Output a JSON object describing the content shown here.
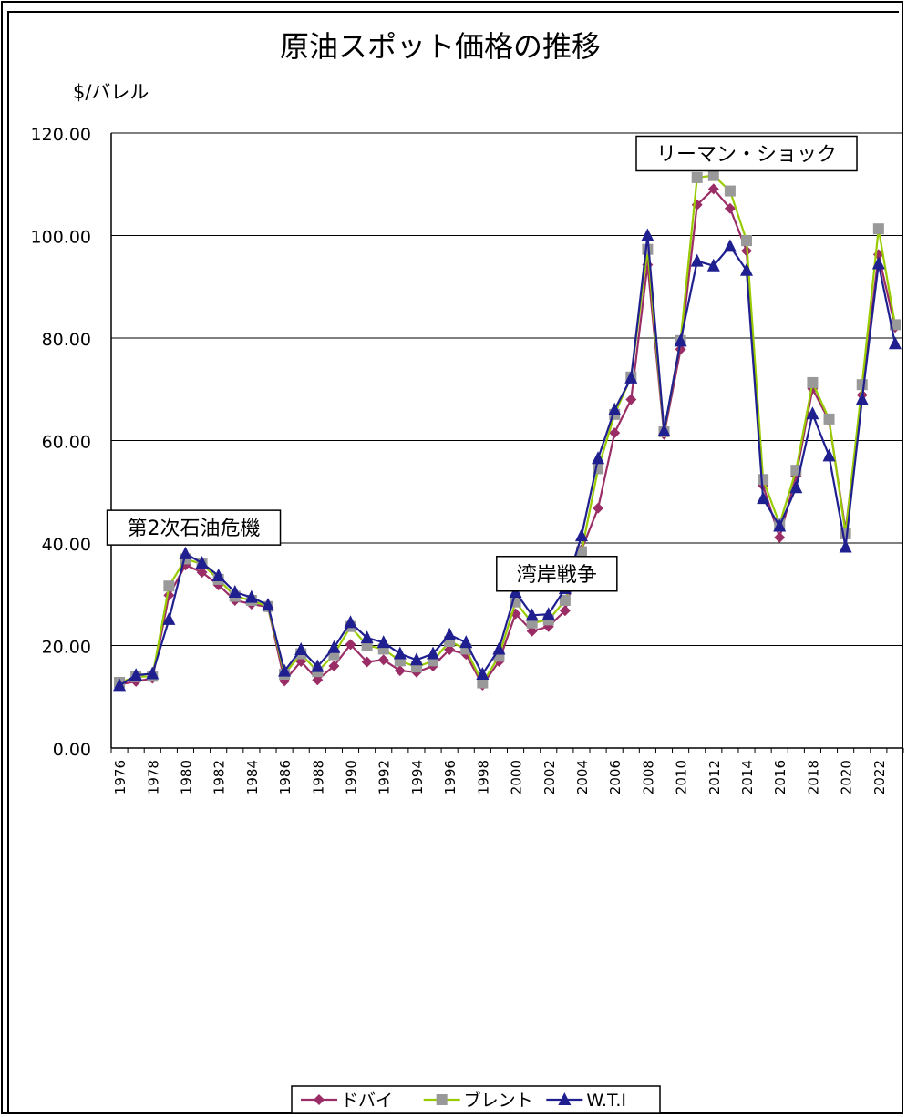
{
  "chart_data": {
    "type": "line",
    "title": "原油スポット価格の推移",
    "unit_label": "$/バレル",
    "ylim": [
      0,
      120
    ],
    "y_ticks": [
      "0.00",
      "20.00",
      "40.00",
      "60.00",
      "80.00",
      "100.00",
      "120.00"
    ],
    "grid": true,
    "x": [
      1976,
      1977,
      1978,
      1979,
      1980,
      1981,
      1982,
      1983,
      1984,
      1985,
      1986,
      1987,
      1988,
      1989,
      1990,
      1991,
      1992,
      1993,
      1994,
      1995,
      1996,
      1997,
      1998,
      1999,
      2000,
      2001,
      2002,
      2003,
      2004,
      2005,
      2006,
      2007,
      2008,
      2009,
      2010,
      2011,
      2012,
      2013,
      2014,
      2015,
      2016,
      2017,
      2018,
      2019,
      2020,
      2021,
      2022,
      2023
    ],
    "x_tick_labels": [
      "1976",
      "1978",
      "1980",
      "1982",
      "1984",
      "1986",
      "1988",
      "1990",
      "1992",
      "1994",
      "1996",
      "1998",
      "2000",
      "2002",
      "2004",
      "2006",
      "2008",
      "2010",
      "2012",
      "2014",
      "2016",
      "2018",
      "2020",
      "2022"
    ],
    "series": [
      {
        "name": "ドバイ",
        "color": "#9b2d66",
        "marker": "diamond",
        "values": [
          12.4,
          13.0,
          13.6,
          29.8,
          35.7,
          34.3,
          31.8,
          28.8,
          28.1,
          27.5,
          13.1,
          16.9,
          13.3,
          16.0,
          20.2,
          16.8,
          17.2,
          15.1,
          14.8,
          16.0,
          19.2,
          18.3,
          12.3,
          16.9,
          26.2,
          22.8,
          23.7,
          26.8,
          38.7,
          46.8,
          61.5,
          68.0,
          94.3,
          61.2,
          77.8,
          106.0,
          109.1,
          105.3,
          97.0,
          51.2,
          41.1,
          53.1,
          70.1,
          63.9,
          42.5,
          68.9,
          96.3,
          82.1
        ]
      },
      {
        "name": "ブレント",
        "color": "#99cc00",
        "marker": "square",
        "values": [
          12.8,
          13.9,
          14.0,
          31.6,
          36.9,
          35.9,
          32.9,
          29.6,
          28.8,
          27.6,
          14.4,
          18.4,
          14.9,
          18.2,
          23.7,
          20.0,
          19.3,
          17.0,
          15.8,
          17.0,
          20.8,
          19.3,
          12.7,
          17.9,
          28.5,
          24.4,
          25.0,
          28.8,
          38.3,
          54.5,
          65.1,
          72.4,
          97.3,
          61.7,
          79.5,
          111.3,
          111.7,
          108.7,
          99.0,
          52.4,
          43.7,
          54.2,
          71.3,
          64.2,
          41.8,
          70.9,
          101.3,
          82.6
        ]
      },
      {
        "name": "W.T.I",
        "color": "#1f1f8f",
        "marker": "triangle",
        "values": [
          12.2,
          14.2,
          14.5,
          25.1,
          37.9,
          36.1,
          33.6,
          30.4,
          29.4,
          27.9,
          15.0,
          19.2,
          15.9,
          19.6,
          24.5,
          21.5,
          20.6,
          18.4,
          17.2,
          18.4,
          22.1,
          20.6,
          14.4,
          19.3,
          30.4,
          25.9,
          26.1,
          31.1,
          41.4,
          56.5,
          66.0,
          72.2,
          100.0,
          61.9,
          79.4,
          95.0,
          94.1,
          97.9,
          93.2,
          48.7,
          43.3,
          50.8,
          65.2,
          57.0,
          39.2,
          68.0,
          94.5,
          78.9
        ]
      }
    ],
    "annotations": [
      {
        "text": "第2次石油危機",
        "year": 1980.5,
        "value": 43
      },
      {
        "text": "湾岸戦争",
        "year": 2002.5,
        "value": 34
      },
      {
        "text": "リーマン・ショック",
        "year": 2014,
        "value": 116
      }
    ],
    "legend_position": "bottom"
  }
}
